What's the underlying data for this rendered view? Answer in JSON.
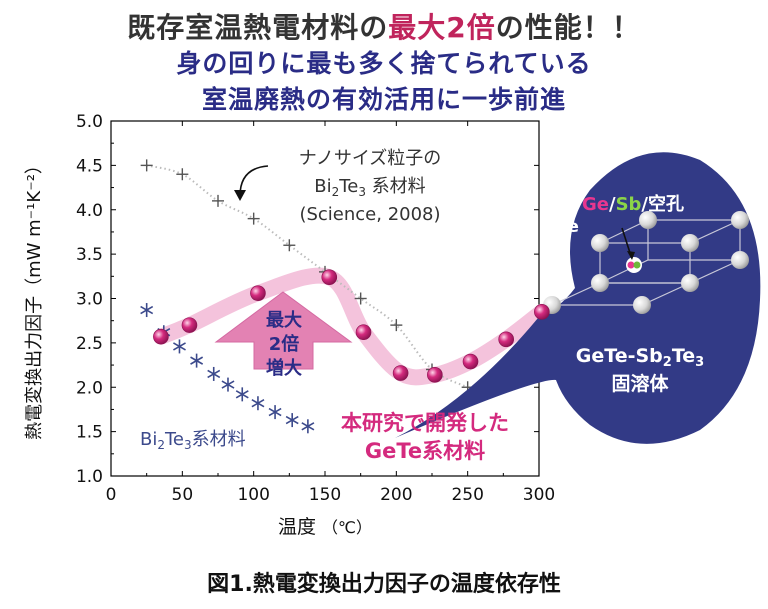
{
  "header": {
    "line1_pre": "既存室温熱電材料の",
    "line1_accent": "最大2倍",
    "line1_post": "の性能！！",
    "line2": "身の回りに最も多く捨てられている",
    "line3": "室温廃熱の有効活用に一歩前進"
  },
  "caption": "図1.熱電変換出力因子の温度依存性",
  "colors": {
    "gete": "#d42a7e",
    "gete_band": "#f4c3dc",
    "bi2te3": "#3c4a8c",
    "nano": "#555555",
    "bubble": "#323a86",
    "arrow": "#e382b3"
  },
  "chart_data": {
    "type": "scatter",
    "xlabel_main": "温度",
    "xlabel_unit": "（℃）",
    "ylabel": "熱電変換出力因子（mW m⁻¹K⁻²）",
    "xlim": [
      0,
      300
    ],
    "ylim": [
      1.0,
      5.0
    ],
    "x_ticks": [
      "0",
      "50",
      "100",
      "150",
      "200",
      "250",
      "300"
    ],
    "y_ticks": [
      "1.0",
      "1.5",
      "2.0",
      "2.5",
      "3.0",
      "3.5",
      "4.0",
      "4.5",
      "5.0"
    ],
    "series": [
      {
        "key": "gete",
        "marker": "sphere",
        "x": [
          35,
          55,
          103,
          153,
          177,
          203,
          227,
          252,
          277,
          302
        ],
        "y": [
          2.57,
          2.7,
          3.06,
          3.24,
          2.62,
          2.16,
          2.14,
          2.29,
          2.54,
          2.85
        ]
      },
      {
        "key": "bi2te3",
        "marker": "asterisk",
        "x": [
          25,
          37,
          48,
          60,
          72,
          82,
          92,
          103,
          115,
          127,
          138
        ],
        "y": [
          2.87,
          2.62,
          2.46,
          2.3,
          2.15,
          2.03,
          1.92,
          1.82,
          1.72,
          1.63,
          1.56
        ]
      },
      {
        "key": "nano",
        "marker": "plus",
        "x": [
          25,
          50,
          75,
          100,
          125,
          150,
          175,
          200,
          225,
          250
        ],
        "y": [
          4.5,
          4.4,
          4.1,
          3.9,
          3.6,
          3.3,
          3.0,
          2.7,
          2.2,
          2.0
        ]
      }
    ],
    "annotations": {
      "nano_line1": "ナノサイズ粒子の",
      "nano_line2_a": "Bi",
      "nano_line2_sub": "2",
      "nano_line2_b": "Te",
      "nano_line2_sub2": "3",
      "nano_line2_c": " 系材料",
      "nano_line3": "(Science, 2008)",
      "bi_a": "Bi",
      "bi_sub": "2",
      "bi_b": "Te",
      "bi_sub2": "3",
      "bi_c": "系材料",
      "gete_line1": "本研究で開発した",
      "gete_line2": "GeTe系材料",
      "arrow_line1": "最大",
      "arrow_line2": "2倍",
      "arrow_line3": "増大"
    },
    "bubble": {
      "top_ge": "Ge",
      "top_slash1": "/",
      "top_sb": "Sb",
      "top_rest": "/空孔",
      "te_label": "Te",
      "formula_a": "GeTe-Sb",
      "formula_sub": "2",
      "formula_b": "Te",
      "formula_sub2": "3",
      "solid_solution": "固溶体"
    }
  }
}
